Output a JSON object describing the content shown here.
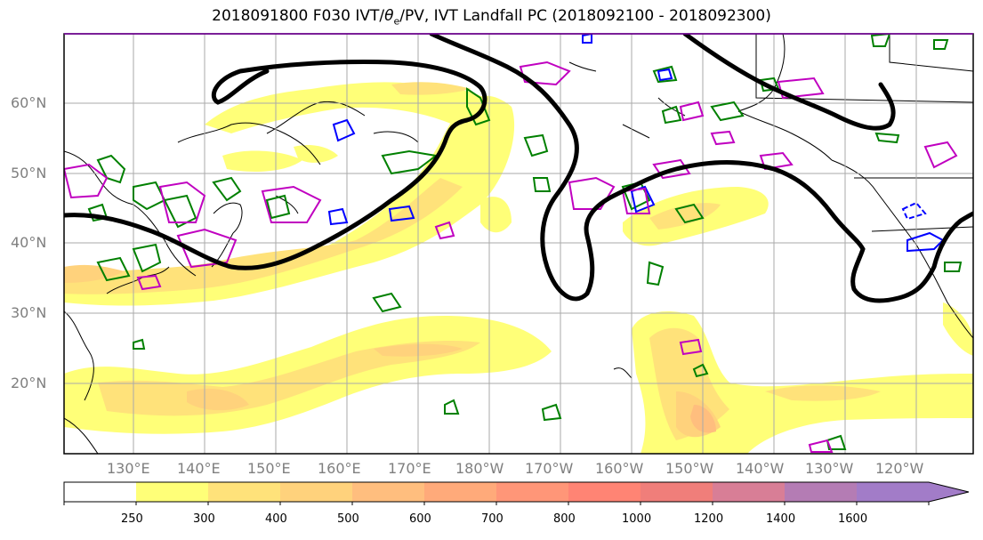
{
  "title": {
    "prefix": "2018091800 F030 IVT/",
    "theta": "θ",
    "sub": "e",
    "suffix": "/PV, IVT Landfall PC (2018092100 - 2018092300)"
  },
  "map": {
    "lat_labels": [
      "60°N",
      "50°N",
      "40°N",
      "30°N",
      "20°N"
    ],
    "lon_labels": [
      "130°E",
      "140°E",
      "150°E",
      "160°E",
      "170°E",
      "180°W",
      "170°W",
      "160°W",
      "150°W",
      "140°W",
      "130°W",
      "120°W"
    ]
  },
  "colorbar": {
    "levels": [
      "250",
      "300",
      "400",
      "500",
      "600",
      "700",
      "800",
      "1000",
      "1200",
      "1400",
      "1600"
    ],
    "colors": [
      "#ffffff",
      "#ffff78",
      "#ffe27a",
      "#ffd27c",
      "#ffbe7e",
      "#ffaa7a",
      "#ff9678",
      "#ff8474",
      "#f07e7a",
      "#d87e96",
      "#b47cb4",
      "#a27cc8"
    ]
  }
}
